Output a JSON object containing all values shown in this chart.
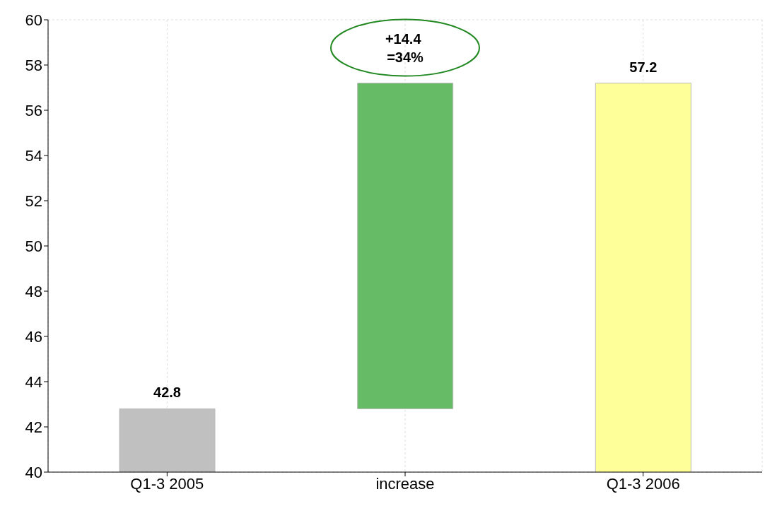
{
  "chart_data": {
    "type": "bar",
    "categories": [
      "Q1-3 2005",
      "increase",
      "Q1-3 2006"
    ],
    "values": [
      42.8,
      14.4,
      57.2
    ],
    "base": [
      0,
      42.8,
      0
    ],
    "colors": [
      "#c0c0c0",
      "#66bb66",
      "#ffff99"
    ],
    "value_labels": [
      "42.8",
      null,
      "57.2"
    ],
    "annotations": [
      {
        "text": "+14.4 =34%",
        "x": "increase",
        "y": 57.2
      }
    ],
    "ylim": [
      40,
      60
    ],
    "yticks": [
      40,
      42,
      44,
      46,
      48,
      50,
      52,
      54,
      56,
      58,
      60
    ],
    "grid": true
  }
}
